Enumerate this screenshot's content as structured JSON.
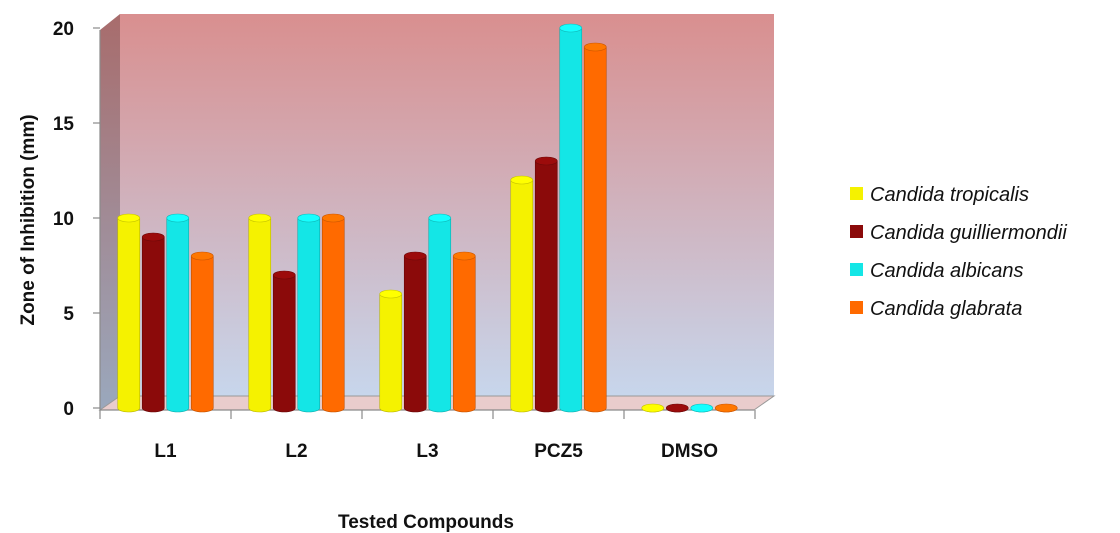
{
  "chart_data": {
    "type": "bar",
    "title": "",
    "xlabel": "Tested Compounds",
    "ylabel": "Zone of Inhibition (mm)",
    "ylim": [
      0,
      20
    ],
    "yticks": [
      "0",
      "5",
      "10",
      "15",
      "20"
    ],
    "categories": [
      "L1",
      "L2",
      "L3",
      "PCZ5",
      "DMSO"
    ],
    "series": [
      {
        "name": "Candida tropicalis",
        "color": "#f5f200",
        "values": [
          10,
          10,
          6,
          12,
          0
        ]
      },
      {
        "name": "Candida guilliermondii",
        "color": "#8b0a0a",
        "values": [
          9,
          7,
          8,
          13,
          0
        ]
      },
      {
        "name": "Candida albicans",
        "color": "#14e6e6",
        "values": [
          10,
          10,
          10,
          20,
          0
        ]
      },
      {
        "name": "Candida glabrata",
        "color": "#ff6a00",
        "values": [
          8,
          10,
          8,
          19,
          0
        ]
      }
    ],
    "grid": false,
    "legend_position": "right",
    "background_gradient": [
      "#d98f8f",
      "#c7d6ec"
    ]
  }
}
